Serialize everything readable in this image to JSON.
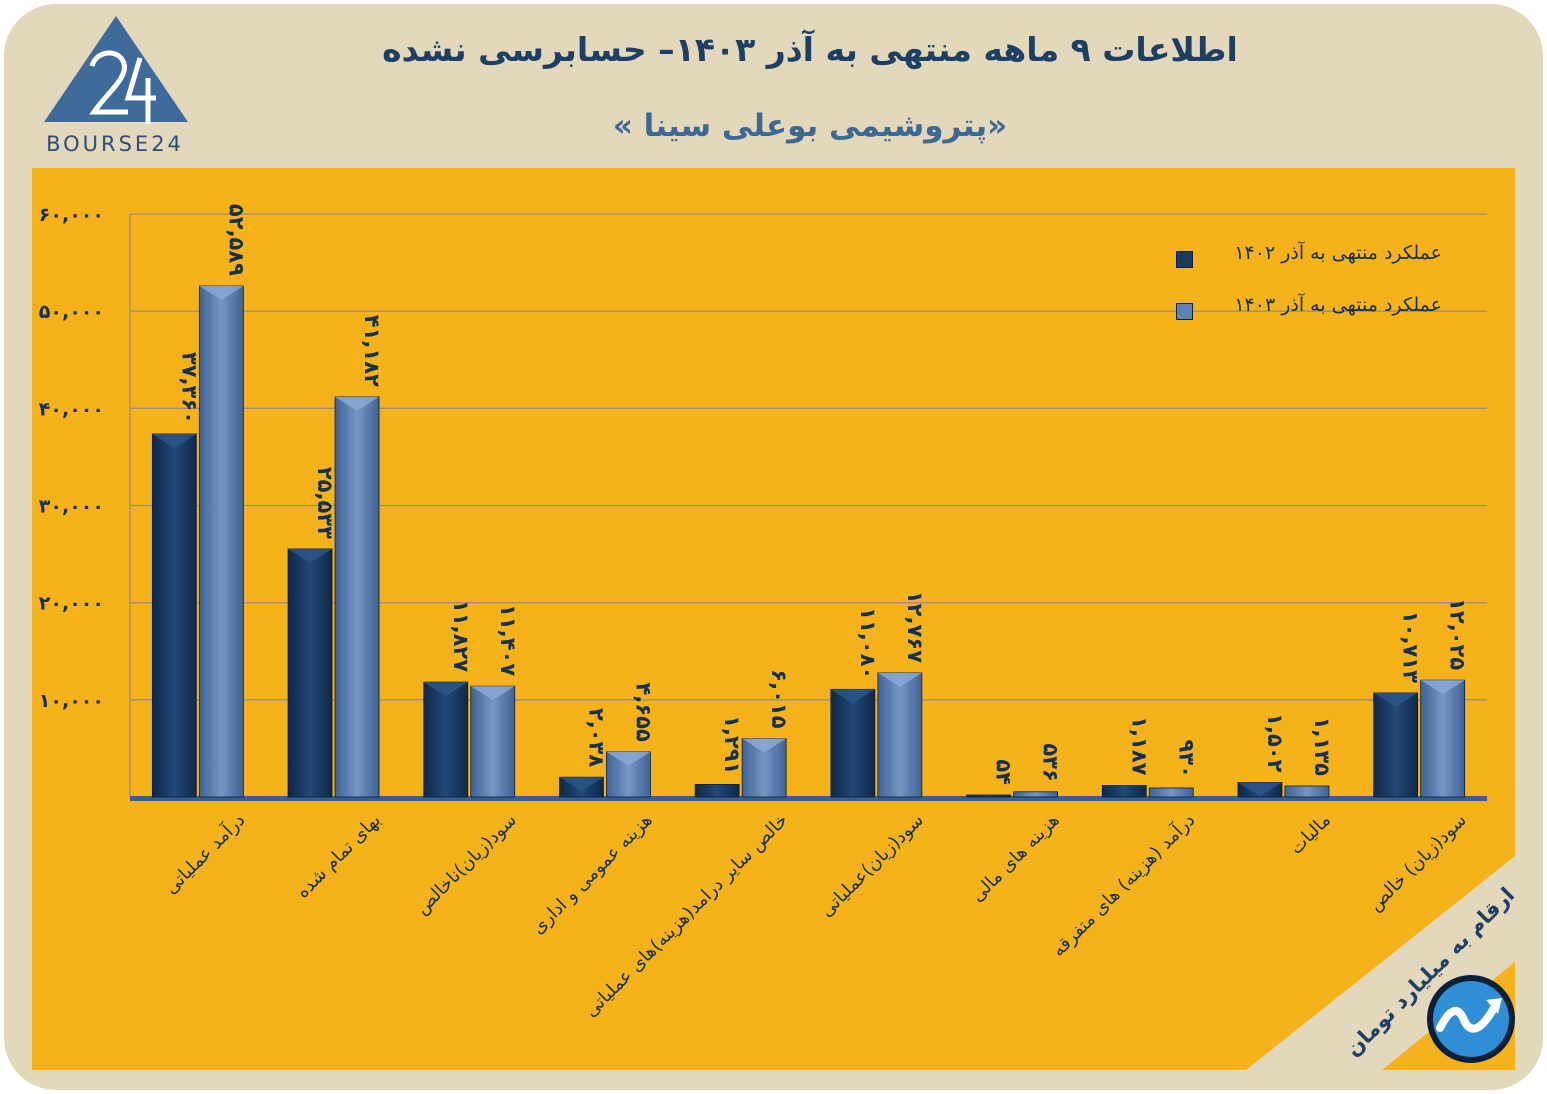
{
  "header": {
    "title": "اطلاعات ۹ ماهه منتهی به آذر ۱۴۰۳– حسابرسی نشده",
    "subtitle": "«پتروشیمی بوعلی سینا »",
    "logo_text": "BOURSE24"
  },
  "note": {
    "units": "ارقام به میلیارد تومان"
  },
  "colors": {
    "background": "#e3d7bc",
    "panel": "#f6b21a",
    "series_1402": "#1a3a62",
    "series_1403": "#5e82b3",
    "title": "#1d3f63"
  },
  "chart_data": {
    "type": "bar",
    "categories": [
      "درآمد عملیاتی",
      "بهای تمام شده",
      "سود(زیان)ناخالص",
      "هزینه عمومی و اداری",
      "خالص سایر درامد(هزینه)های عملیاتی",
      "سود(زیان)عملیاتی",
      "هزینه های مالی",
      "درآمد (هزینه) های متفرقه",
      "مالیات",
      "سود(زیان) خالص"
    ],
    "series": [
      {
        "name": "عملکرد منتهی به آذر ۱۴۰۲",
        "values": [
          37360,
          25533,
          11827,
          2038,
          1291,
          11080,
          54,
          1187,
          1502,
          10713
        ],
        "labels": [
          "۳۷,۳۶۰",
          "۲۵,۵۳۳",
          "۱۱,۸۲۷",
          "۲,۰۳۸",
          "۱,۲۹۱",
          "۱۱,۰۸۰",
          "۵۴",
          "۱,۱۸۷",
          "۱,۵۰۲",
          "۱۰,۷۱۳"
        ]
      },
      {
        "name": "عملکرد منتهی به آذر ۱۴۰۳",
        "values": [
          52589,
          41182,
          11407,
          4655,
          6015,
          12767,
          536,
          930,
          1135,
          12025
        ],
        "labels": [
          "۵۲,۵۸۹",
          "۴۱,۱۸۲",
          "۱۱,۴۰۷",
          "۴,۶۵۵",
          "۶,۰۱۵",
          "۱۲,۷۶۷",
          "۵۳۶",
          "۹۳۰",
          "۱,۱۳۵",
          "۱۲,۰۲۵"
        ]
      }
    ],
    "yticks": [
      10000,
      20000,
      30000,
      40000,
      50000,
      60000
    ],
    "ytick_labels": [
      "۱۰,۰۰۰",
      "۲۰,۰۰۰",
      "۳۰,۰۰۰",
      "۴۰,۰۰۰",
      "۵۰,۰۰۰",
      "۶۰,۰۰۰"
    ],
    "ylim": [
      0,
      60000
    ],
    "grid": true,
    "legend_position": "top-right",
    "xlabel": "",
    "ylabel": ""
  }
}
